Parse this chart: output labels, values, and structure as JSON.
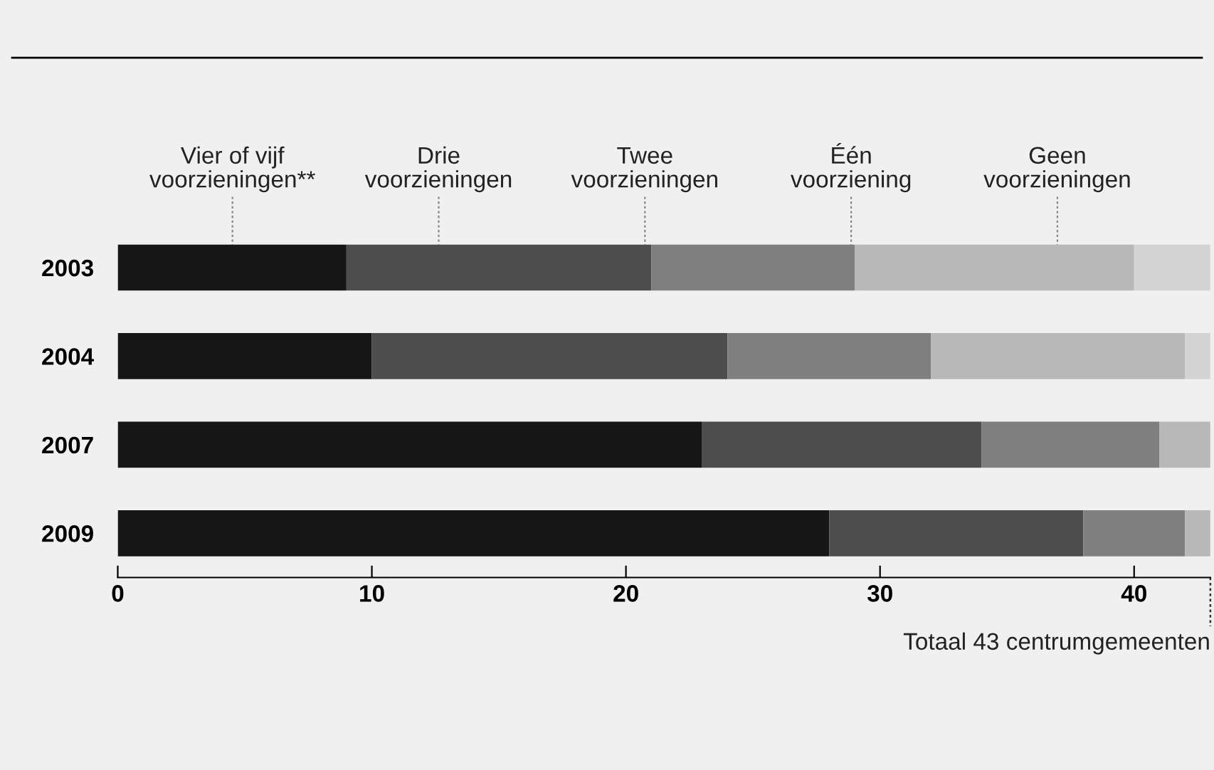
{
  "chart_data": {
    "type": "bar",
    "orientation": "horizontal",
    "stacked": true,
    "categories": [
      "2003",
      "2004",
      "2007",
      "2009"
    ],
    "series": [
      {
        "name": "Vier of vijf voorzieningen**",
        "color": "#161616",
        "values": [
          9,
          10,
          23,
          28
        ]
      },
      {
        "name": "Drie voorzieningen",
        "color": "#4d4d4d",
        "values": [
          12,
          14,
          11,
          10
        ]
      },
      {
        "name": "Twee voorzieningen",
        "color": "#7f7f7f",
        "values": [
          8,
          8,
          7,
          4
        ]
      },
      {
        "name": "Één voorziening",
        "color": "#b8b8b8",
        "values": [
          11,
          10,
          2,
          1
        ]
      },
      {
        "name": "Geen voorzieningen",
        "color": "#d3d3d3",
        "values": [
          3,
          1,
          0,
          0
        ]
      }
    ],
    "xlim": [
      0,
      43
    ],
    "xticks": [
      0,
      10,
      20,
      30,
      40
    ],
    "grid": false,
    "legend": "top",
    "annotations": [
      "Totaal 43 centrumgemeenten"
    ]
  }
}
